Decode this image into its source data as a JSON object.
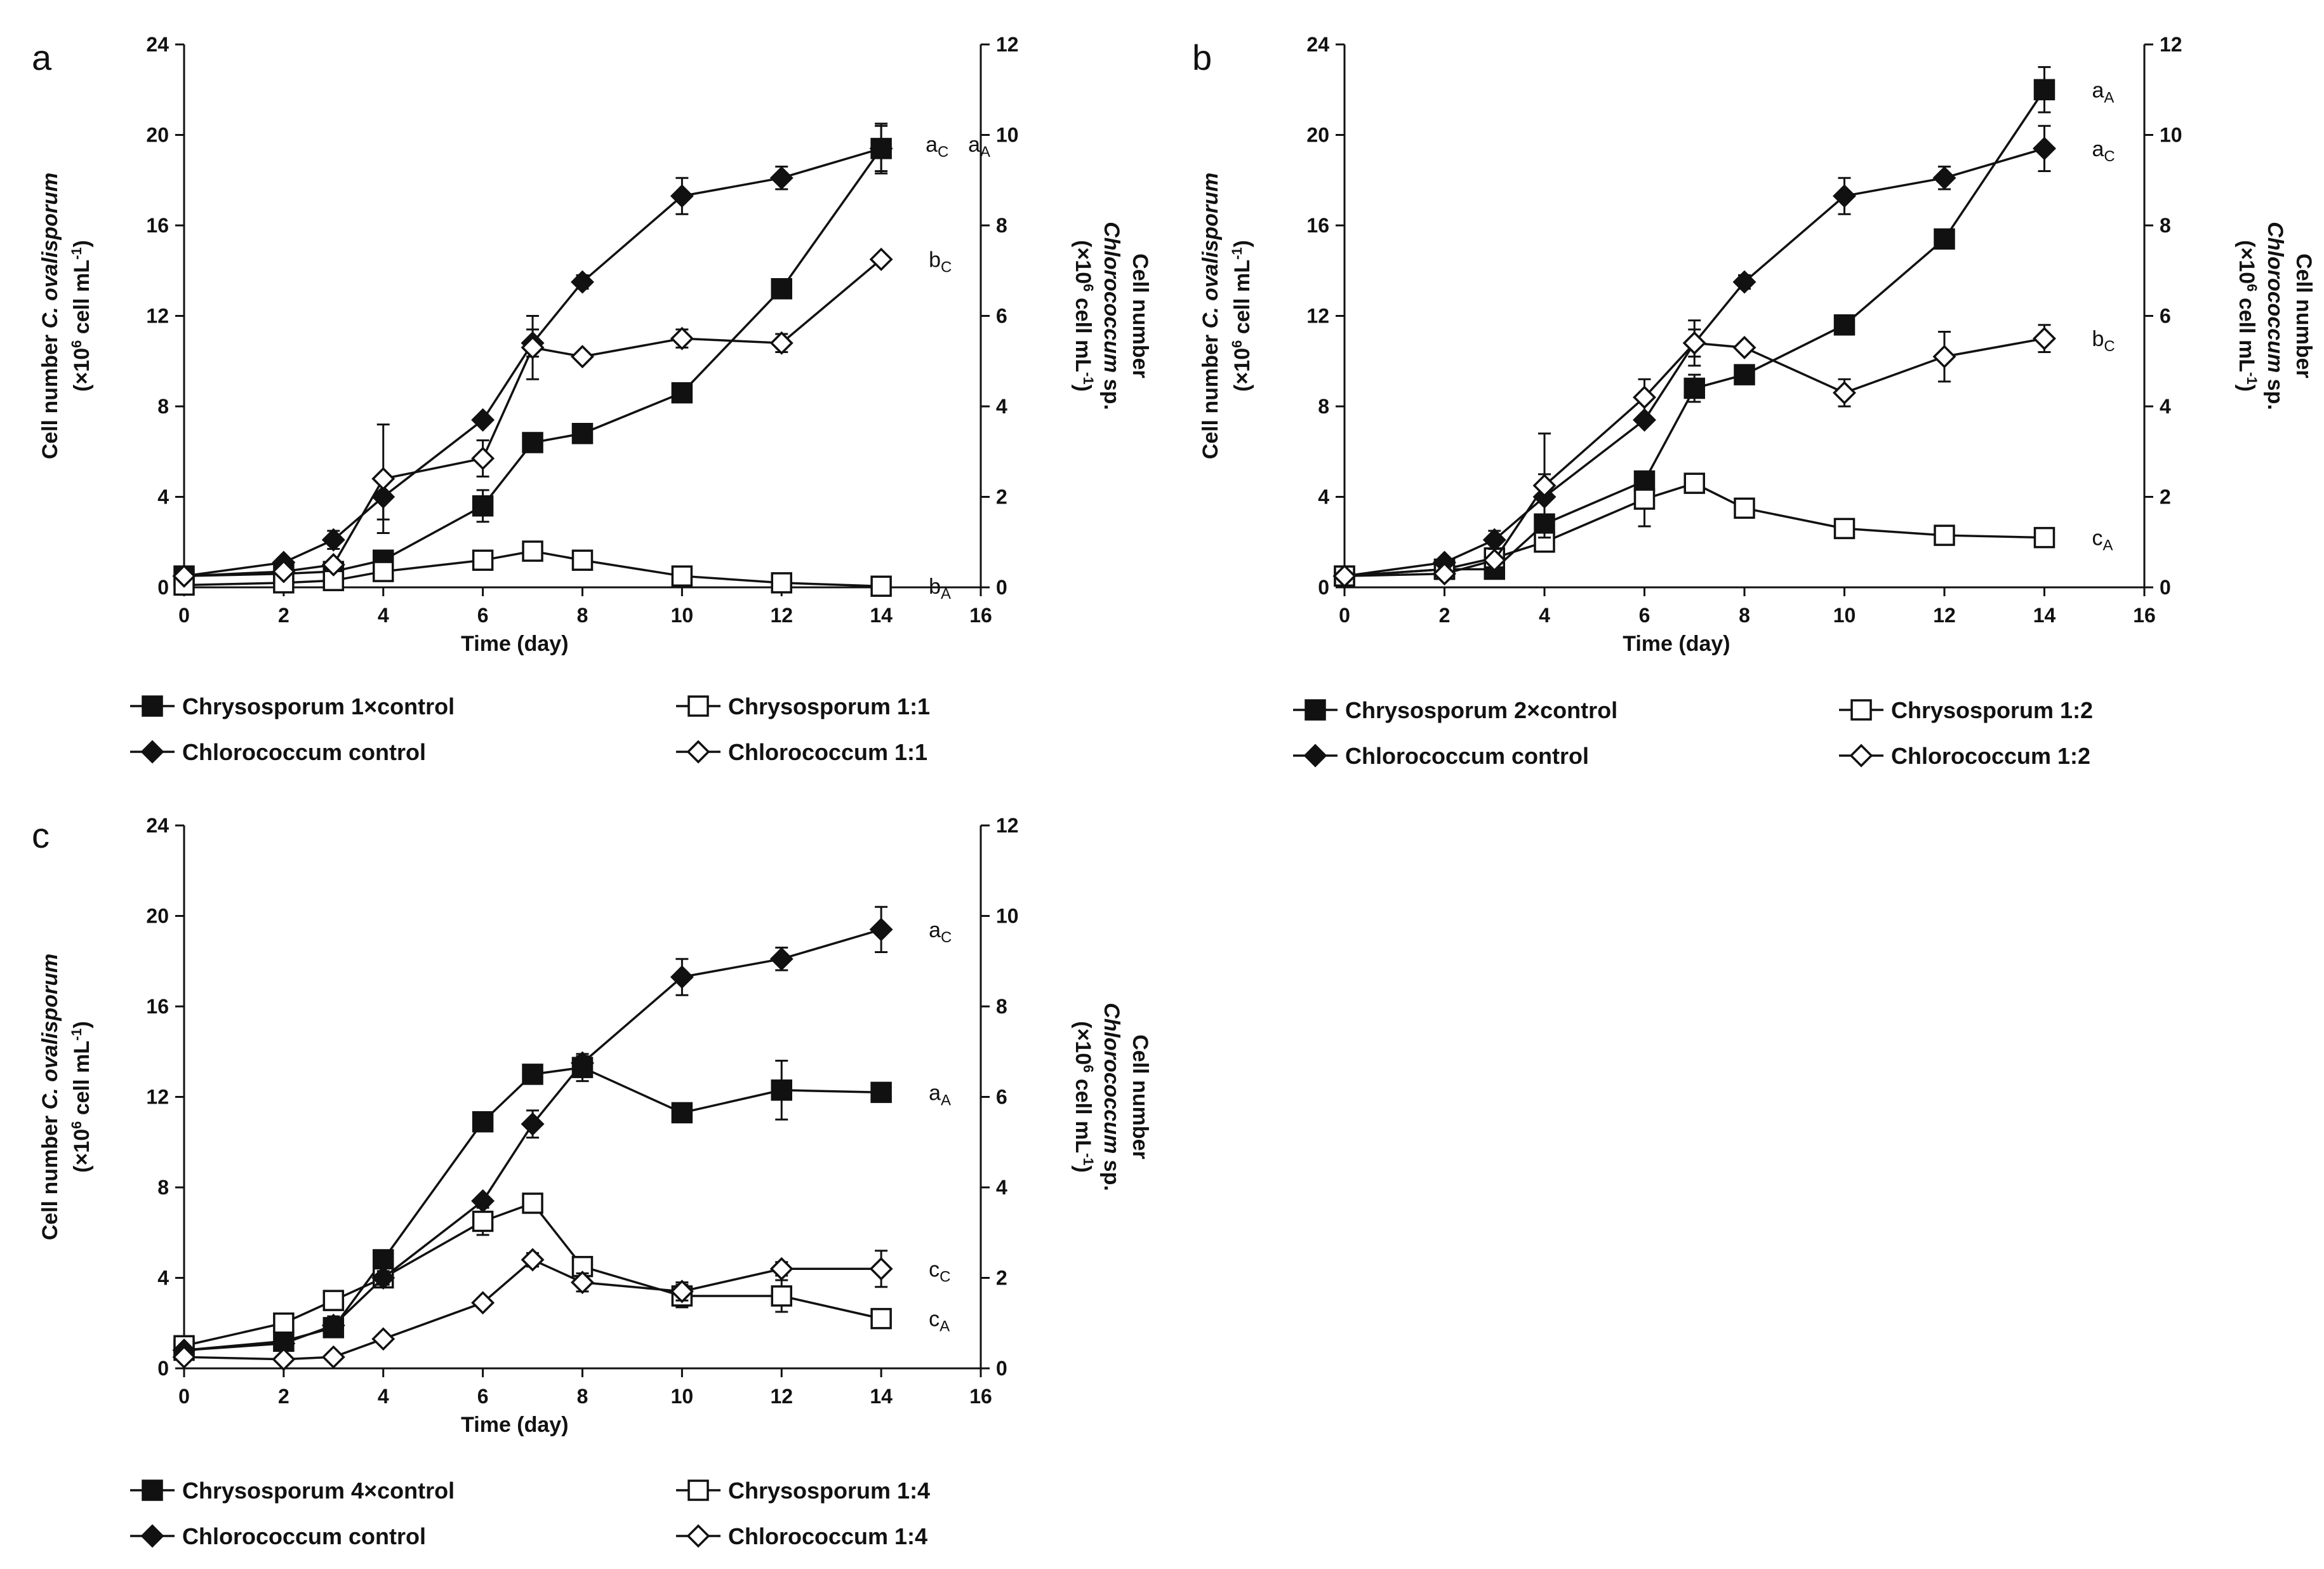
{
  "chart_data": [
    {
      "type": "line",
      "panel": "a",
      "xlabel": "Time (day)",
      "ylabel_left": [
        "Cell number ",
        "C. ovalisporum",
        "(×10",
        "6",
        " cell mL",
        "-1",
        ")"
      ],
      "ylabel_right": [
        "Cell number",
        "Chlorococcum",
        " sp.",
        "(×10",
        "6",
        " cell mL",
        "-1",
        ")"
      ],
      "xlim": [
        0,
        16
      ],
      "xticks": [
        0,
        2,
        4,
        6,
        8,
        10,
        12,
        14,
        16
      ],
      "ylim_left": [
        0,
        24
      ],
      "yticks_left": [
        0,
        4,
        8,
        12,
        16,
        20,
        24
      ],
      "ylim_right": [
        0,
        12
      ],
      "yticks_right": [
        0,
        2,
        4,
        6,
        8,
        10,
        12
      ],
      "series": [
        {
          "name": "Chrysosporum 1×control",
          "marker": "filled-square",
          "axis": "left",
          "x": [
            0,
            2,
            3,
            4,
            6,
            7,
            8,
            10,
            12,
            14
          ],
          "values": [
            0.5,
            0.6,
            0.7,
            1.2,
            3.6,
            6.4,
            6.8,
            8.6,
            13.2,
            19.4
          ],
          "err": [
            0,
            0,
            0,
            0,
            0.7,
            0,
            0,
            0,
            0,
            1.1
          ]
        },
        {
          "name": "Chrysosporum 1:1",
          "marker": "open-square",
          "axis": "left",
          "x": [
            0,
            2,
            3,
            4,
            6,
            7,
            8,
            10,
            12,
            14
          ],
          "values": [
            0.1,
            0.2,
            0.3,
            0.7,
            1.2,
            1.6,
            1.2,
            0.5,
            0.2,
            0.05
          ],
          "err": [
            0,
            0,
            0,
            0,
            0,
            0,
            0,
            0,
            0,
            0
          ]
        },
        {
          "name": "Chlorococcum control",
          "marker": "filled-diamond",
          "axis": "right",
          "x": [
            0,
            2,
            3,
            4,
            6,
            7,
            8,
            10,
            12,
            14
          ],
          "values": [
            0.25,
            0.55,
            1.05,
            2.0,
            3.7,
            5.4,
            6.75,
            8.65,
            9.05,
            9.7
          ],
          "err": [
            0,
            0.1,
            0.2,
            0.5,
            0,
            0.3,
            0.15,
            0.4,
            0.25,
            0.5
          ]
        },
        {
          "name": "Chlorococcum 1:1",
          "marker": "open-diamond",
          "axis": "right",
          "x": [
            0,
            2,
            3,
            4,
            6,
            7,
            8,
            10,
            12,
            14
          ],
          "values": [
            0.25,
            0.35,
            0.5,
            2.4,
            2.85,
            5.3,
            5.1,
            5.5,
            5.4,
            7.25
          ],
          "err": [
            0,
            0,
            0,
            1.2,
            0.4,
            0.7,
            0,
            0.2,
            0.2,
            0.1
          ]
        }
      ],
      "annotations": [
        {
          "main": "a",
          "sub": "C",
          "near": "Chlorococcum control end"
        },
        {
          "main": "a",
          "sub": "A",
          "near": "Chrysosporum 1×control end"
        },
        {
          "main": "b",
          "sub": "C",
          "near": "Chlorococcum 1:1 end"
        },
        {
          "main": "b",
          "sub": "A",
          "near": "Chrysosporum 1:1 end"
        }
      ]
    },
    {
      "type": "line",
      "panel": "b",
      "xlabel": "Time (day)",
      "ylabel_left": [
        "Cell number ",
        "C. ovalisporum",
        "(×10",
        "6",
        " cell mL",
        "-1",
        ")"
      ],
      "ylabel_right": [
        "Cell number",
        "Chlorococcum",
        " sp.",
        "(×10",
        "6",
        " cell mL",
        "-1",
        ")"
      ],
      "xlim": [
        0,
        16
      ],
      "xticks": [
        0,
        2,
        4,
        6,
        8,
        10,
        12,
        14,
        16
      ],
      "ylim_left": [
        0,
        24
      ],
      "yticks_left": [
        0,
        4,
        8,
        12,
        16,
        20,
        24
      ],
      "ylim_right": [
        0,
        12
      ],
      "yticks_right": [
        0,
        2,
        4,
        6,
        8,
        10,
        12
      ],
      "series": [
        {
          "name": "Chrysosporum 2×control",
          "marker": "filled-square",
          "axis": "left",
          "x": [
            0,
            2,
            3,
            4,
            6,
            7,
            8,
            10,
            12,
            14
          ],
          "values": [
            0.5,
            0.8,
            0.8,
            2.8,
            4.7,
            8.8,
            9.4,
            11.6,
            15.4,
            22.0
          ],
          "err": [
            0,
            0,
            0,
            0,
            0,
            0.6,
            0,
            0,
            0,
            1.0
          ]
        },
        {
          "name": "Chrysosporum 1:2",
          "marker": "open-square",
          "axis": "left",
          "x": [
            0,
            2,
            3,
            4,
            6,
            7,
            8,
            10,
            12,
            14
          ],
          "values": [
            0.5,
            0.8,
            1.3,
            2.0,
            3.9,
            4.6,
            3.5,
            2.6,
            2.3,
            2.2
          ],
          "err": [
            0,
            0,
            0,
            0,
            1.2,
            0,
            0,
            0,
            0,
            0
          ]
        },
        {
          "name": "Chlorococcum control",
          "marker": "filled-diamond",
          "axis": "right",
          "x": [
            0,
            2,
            3,
            4,
            6,
            7,
            8,
            10,
            12,
            14
          ],
          "values": [
            0.25,
            0.55,
            1.05,
            2.0,
            3.7,
            5.4,
            6.75,
            8.65,
            9.05,
            9.7
          ],
          "err": [
            0,
            0.1,
            0.2,
            0.5,
            0,
            0.3,
            0.15,
            0.4,
            0.25,
            0.5
          ]
        },
        {
          "name": "Chlorococcum 1:2",
          "marker": "open-diamond",
          "axis": "right",
          "x": [
            0,
            2,
            3,
            4,
            6,
            7,
            8,
            10,
            12,
            14
          ],
          "values": [
            0.25,
            0.3,
            0.6,
            2.25,
            4.2,
            5.4,
            5.3,
            4.3,
            5.1,
            5.5
          ],
          "err": [
            0,
            0,
            0,
            1.15,
            0.4,
            0.5,
            0,
            0.3,
            0.55,
            0.3
          ]
        }
      ],
      "annotations": [
        {
          "main": "a",
          "sub": "A",
          "near": "Chrysosporum 2×control end"
        },
        {
          "main": "a",
          "sub": "C",
          "near": "Chlorococcum control end"
        },
        {
          "main": "b",
          "sub": "C",
          "near": "Chlorococcum 1:2 end"
        },
        {
          "main": "c",
          "sub": "A",
          "near": "Chrysosporum 1:2 end"
        }
      ]
    },
    {
      "type": "line",
      "panel": "c",
      "xlabel": "Time (day)",
      "ylabel_left": [
        "Cell number ",
        "C. ovalisporum",
        "(×10",
        "6",
        " cell mL",
        "-1",
        ")"
      ],
      "ylabel_right": [
        "Cell number",
        "Chlorococcum",
        " sp.",
        "(×10",
        "6",
        " cell mL",
        "-1",
        ")"
      ],
      "xlim": [
        0,
        16
      ],
      "xticks": [
        0,
        2,
        4,
        6,
        8,
        10,
        12,
        14,
        16
      ],
      "ylim_left": [
        0,
        24
      ],
      "yticks_left": [
        0,
        4,
        8,
        12,
        16,
        20,
        24
      ],
      "ylim_right": [
        0,
        12
      ],
      "yticks_right": [
        0,
        2,
        4,
        6,
        8,
        10,
        12
      ],
      "series": [
        {
          "name": "Chrysosporum 4×control",
          "marker": "filled-square",
          "axis": "left",
          "x": [
            0,
            2,
            3,
            4,
            6,
            7,
            8,
            10,
            12,
            14
          ],
          "values": [
            0.8,
            1.2,
            1.8,
            4.8,
            10.9,
            13.0,
            13.3,
            11.3,
            12.3,
            12.2
          ],
          "err": [
            0,
            0,
            0,
            0,
            0,
            0,
            0.6,
            0,
            1.3,
            0
          ]
        },
        {
          "name": "Chrysosporum 1:4",
          "marker": "open-square",
          "axis": "left",
          "x": [
            0,
            2,
            3,
            4,
            6,
            7,
            8,
            10,
            12,
            14
          ],
          "values": [
            1.0,
            2.0,
            3.0,
            4.0,
            6.5,
            7.3,
            4.5,
            3.2,
            3.2,
            2.2
          ],
          "err": [
            0,
            0,
            0,
            0,
            0.6,
            0,
            0,
            0.5,
            0.7,
            0
          ]
        },
        {
          "name": "Chlorococcum control",
          "marker": "filled-diamond",
          "axis": "right",
          "x": [
            0,
            2,
            3,
            4,
            6,
            7,
            8,
            10,
            12,
            14
          ],
          "values": [
            0.4,
            0.55,
            0.95,
            2.0,
            3.7,
            5.4,
            6.75,
            8.65,
            9.05,
            9.7
          ],
          "err": [
            0,
            0.1,
            0.2,
            0.15,
            0,
            0.3,
            0.15,
            0.4,
            0.25,
            0.5
          ]
        },
        {
          "name": "Chlorococcum 1:4",
          "marker": "open-diamond",
          "axis": "right",
          "x": [
            0,
            2,
            3,
            4,
            6,
            7,
            8,
            10,
            12,
            14
          ],
          "values": [
            0.25,
            0.2,
            0.25,
            0.65,
            1.45,
            2.4,
            1.9,
            1.7,
            2.2,
            2.2
          ],
          "err": [
            0,
            0,
            0,
            0,
            0,
            0.15,
            0.2,
            0.2,
            0.15,
            0.4
          ]
        }
      ],
      "annotations": [
        {
          "main": "a",
          "sub": "C",
          "near": "Chlorococcum control end"
        },
        {
          "main": "a",
          "sub": "A",
          "near": "Chrysosporum 4×control end"
        },
        {
          "main": "c",
          "sub": "C",
          "near": "Chlorococcum 1:4 end"
        },
        {
          "main": "c",
          "sub": "A",
          "near": "Chrysosporum 1:4 end"
        }
      ]
    }
  ]
}
